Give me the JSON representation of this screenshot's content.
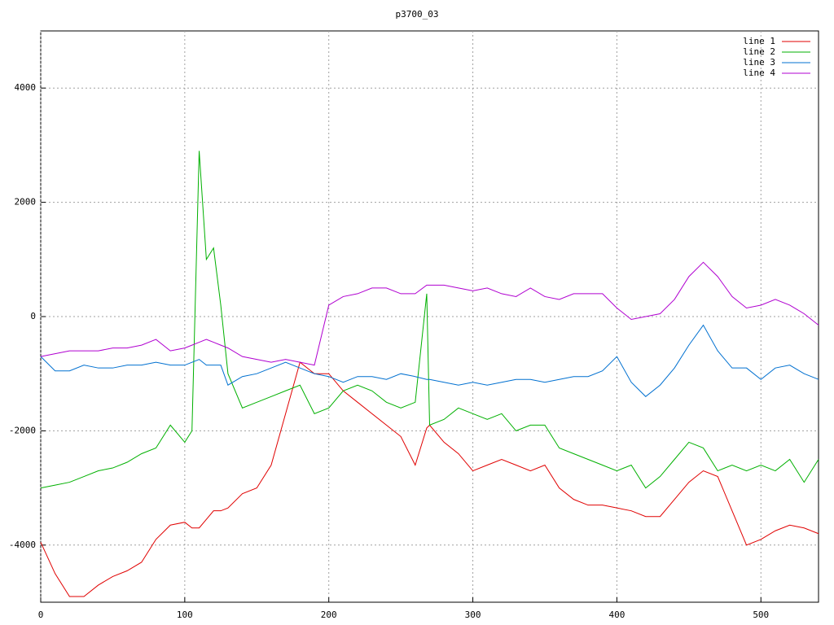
{
  "chart_data": {
    "type": "line",
    "title": "p3700_03",
    "x": [
      0,
      10,
      20,
      30,
      40,
      50,
      60,
      70,
      80,
      90,
      100,
      105,
      110,
      115,
      120,
      125,
      130,
      140,
      150,
      160,
      170,
      180,
      190,
      200,
      210,
      220,
      230,
      240,
      250,
      260,
      268,
      270,
      280,
      290,
      300,
      310,
      320,
      330,
      340,
      350,
      360,
      370,
      380,
      390,
      400,
      410,
      420,
      430,
      440,
      450,
      460,
      470,
      480,
      490,
      500,
      510,
      520,
      530,
      540
    ],
    "series": [
      {
        "name": "line 1",
        "color": "#e00000",
        "values": [
          -3950,
          -4500,
          -4900,
          -4900,
          -4700,
          -4550,
          -4450,
          -4300,
          -3900,
          -3650,
          -3600,
          -3700,
          -3700,
          -3550,
          -3400,
          -3400,
          -3350,
          -3100,
          -3000,
          -2600,
          -1700,
          -800,
          -1000,
          -1000,
          -1300,
          -1500,
          -1700,
          -1900,
          -2100,
          -2600,
          -1950,
          -1900,
          -2200,
          -2400,
          -2700,
          -2600,
          -2500,
          -2600,
          -2700,
          -2600,
          -3000,
          -3200,
          -3300,
          -3300,
          -3350,
          -3400,
          -3500,
          -3500,
          -3200,
          -2900,
          -2700,
          -2800,
          -3400,
          -4000,
          -3900,
          -3750,
          -3650,
          -3700,
          -3800
        ]
      },
      {
        "name": "line 2",
        "color": "#00b000",
        "values": [
          -3000,
          -2950,
          -2900,
          -2800,
          -2700,
          -2650,
          -2550,
          -2400,
          -2300,
          -1900,
          -2200,
          -2000,
          2900,
          1000,
          1200,
          200,
          -1000,
          -1600,
          -1500,
          -1400,
          -1300,
          -1200,
          -1700,
          -1600,
          -1300,
          -1200,
          -1300,
          -1500,
          -1600,
          -1500,
          400,
          -1900,
          -1800,
          -1600,
          -1700,
          -1800,
          -1700,
          -2000,
          -1900,
          -1900,
          -2300,
          -2400,
          -2500,
          -2600,
          -2700,
          -2600,
          -3000,
          -2800,
          -2500,
          -2200,
          -2300,
          -2700,
          -2600,
          -2700,
          -2600,
          -2700,
          -2500,
          -2900,
          -2500
        ]
      },
      {
        "name": "line 3",
        "color": "#0070d0",
        "values": [
          -700,
          -950,
          -950,
          -850,
          -900,
          -900,
          -850,
          -850,
          -800,
          -850,
          -850,
          -800,
          -750,
          -850,
          -850,
          -850,
          -1200,
          -1050,
          -1000,
          -900,
          -800,
          -900,
          -1000,
          -1050,
          -1150,
          -1050,
          -1050,
          -1100,
          -1000,
          -1050,
          -1100,
          -1100,
          -1150,
          -1200,
          -1150,
          -1200,
          -1150,
          -1100,
          -1100,
          -1150,
          -1100,
          -1050,
          -1050,
          -950,
          -700,
          -1150,
          -1400,
          -1200,
          -900,
          -500,
          -150,
          -600,
          -900,
          -900,
          -1100,
          -900,
          -850,
          -1000,
          -1100
        ]
      },
      {
        "name": "line 4",
        "color": "#b000d0",
        "values": [
          -700,
          -650,
          -600,
          -600,
          -600,
          -550,
          -550,
          -500,
          -400,
          -600,
          -550,
          -500,
          -450,
          -400,
          -450,
          -500,
          -550,
          -700,
          -750,
          -800,
          -750,
          -800,
          -850,
          200,
          350,
          400,
          500,
          500,
          400,
          400,
          550,
          550,
          550,
          500,
          450,
          500,
          400,
          350,
          500,
          350,
          300,
          400,
          400,
          400,
          150,
          -50,
          0,
          50,
          300,
          700,
          950,
          700,
          350,
          150,
          200,
          300,
          200,
          50,
          -150
        ]
      }
    ],
    "xlim": [
      0,
      540
    ],
    "ylim": [
      -5000,
      5000
    ],
    "xticks": [
      0,
      100,
      200,
      300,
      400,
      500
    ],
    "yticks": [
      -4000,
      -2000,
      0,
      2000,
      4000
    ],
    "grid": true,
    "legend": "top-right"
  }
}
